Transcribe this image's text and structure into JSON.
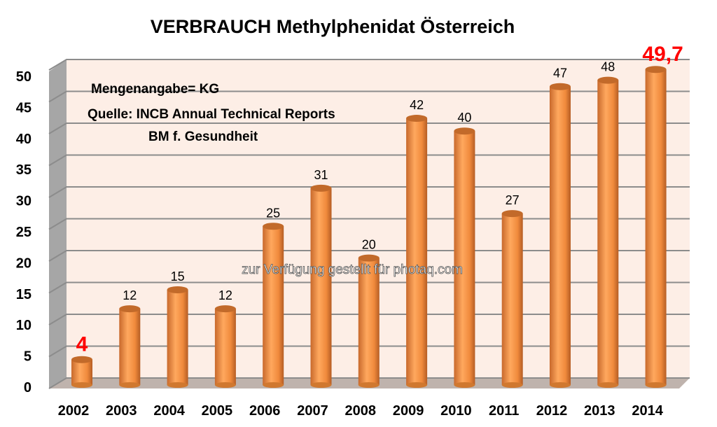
{
  "chart_data": {
    "type": "bar",
    "title": "VERBRAUCH Methylphenidat Österreich",
    "categories": [
      "2002",
      "2003",
      "2004",
      "2005",
      "2006",
      "2007",
      "2008",
      "2009",
      "2010",
      "2011",
      "2012",
      "2013",
      "2014"
    ],
    "values": [
      4,
      12,
      15,
      12,
      25,
      31,
      20,
      42,
      40,
      27,
      47,
      48,
      49.7
    ],
    "data_labels": [
      "4",
      "12",
      "15",
      "12",
      "25",
      "31",
      "20",
      "42",
      "40",
      "27",
      "47",
      "48",
      "49,7"
    ],
    "highlighted_labels": [
      "2002",
      "2014"
    ],
    "yticks": [
      "0",
      "5",
      "10",
      "15",
      "20",
      "25",
      "30",
      "35",
      "40",
      "45",
      "50"
    ],
    "ylim": [
      0,
      50
    ],
    "xlabel": "",
    "ylabel": "",
    "grid": true,
    "annotations": [
      "Mengenangabe= KG",
      "Quelle: INCB Annual Technical Reports",
      "BM f. Gesundheit"
    ],
    "watermark": "zur Verfügung gestellt für photaq.com",
    "colors": {
      "bar": "#f79646",
      "bar_dark": "#b8652a",
      "wall": "#fdeee6",
      "side": "#a6a6a6",
      "floor": "#bfb3ad",
      "highlight": "#ff0000"
    }
  }
}
